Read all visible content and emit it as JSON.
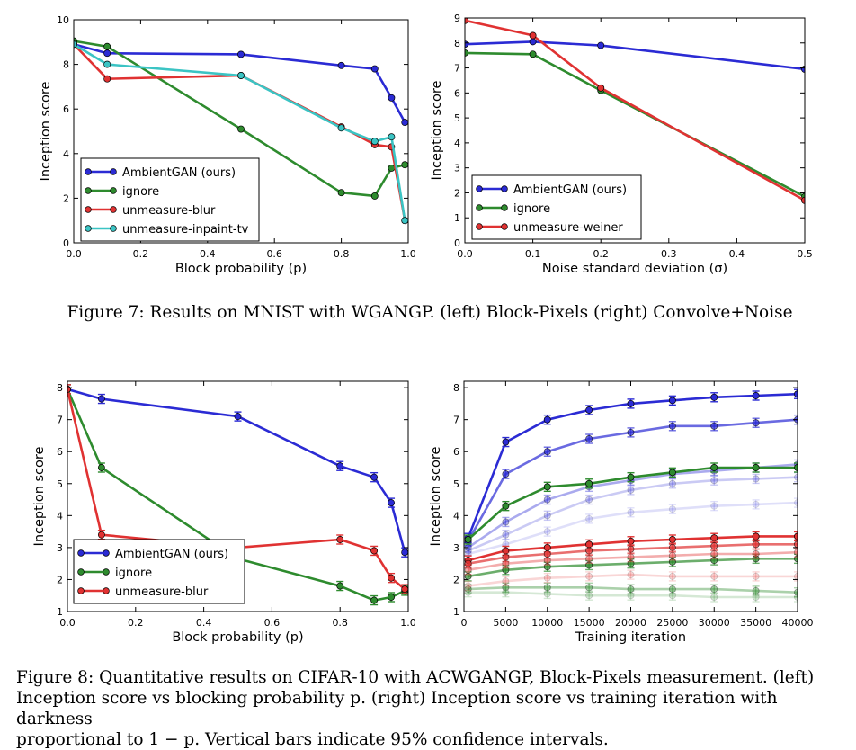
{
  "figure7": {
    "caption": "Figure 7: Results on MNIST with WGANGP. (left) Block-Pixels (right) Convolve+Noise"
  },
  "figure8": {
    "caption_lines": [
      "Figure 8: Quantitative results on CIFAR-10 with ACWGANGP, Block-Pixels measurement. (left)",
      "Inception score vs blocking probability p. (right) Inception score vs training iteration with darkness",
      "proportional to 1 − p. Vertical bars indicate 95% confidence intervals."
    ]
  },
  "colors": {
    "blue": "#2b2bd4",
    "green": "#2e8b2e",
    "red": "#e03232",
    "cyan": "#3bc4c4"
  },
  "chart_data": [
    {
      "id": "mnist_block",
      "type": "line",
      "xlabel": "Block probability (p)",
      "ylabel": "Inception score",
      "xlim": [
        0,
        1
      ],
      "ylim": [
        0,
        10
      ],
      "xticks": [
        "0.0",
        "0.2",
        "0.4",
        "0.6",
        "0.8",
        "1.0"
      ],
      "yticks": [
        "0",
        "2",
        "4",
        "6",
        "8",
        "10"
      ],
      "legend": "bottom-left",
      "series": [
        {
          "name": "AmbientGAN (ours)",
          "color": "blue",
          "x": [
            0,
            0.1,
            0.5,
            0.8,
            0.9,
            0.95,
            0.99
          ],
          "y": [
            8.9,
            8.5,
            8.45,
            7.95,
            7.8,
            6.5,
            5.4
          ]
        },
        {
          "name": "ignore",
          "color": "green",
          "x": [
            0,
            0.1,
            0.5,
            0.8,
            0.9,
            0.95,
            0.99
          ],
          "y": [
            9.05,
            8.8,
            5.1,
            2.25,
            2.1,
            3.35,
            3.5
          ]
        },
        {
          "name": "unmeasure-blur",
          "color": "red",
          "x": [
            0,
            0.1,
            0.5,
            0.8,
            0.9,
            0.95,
            0.99
          ],
          "y": [
            8.9,
            7.35,
            7.5,
            5.2,
            4.4,
            4.3,
            1.0
          ]
        },
        {
          "name": "unmeasure-inpaint-tv",
          "color": "cyan",
          "x": [
            0,
            0.1,
            0.5,
            0.8,
            0.9,
            0.95,
            0.99
          ],
          "y": [
            8.9,
            8.0,
            7.5,
            5.15,
            4.55,
            4.75,
            1.0
          ]
        }
      ]
    },
    {
      "id": "mnist_noise",
      "type": "line",
      "xlabel": "Noise standard deviation (σ)",
      "ylabel": "Inception score",
      "xlim": [
        0,
        0.5
      ],
      "ylim": [
        0,
        9
      ],
      "xticks": [
        "0.0",
        "0.1",
        "0.2",
        "0.3",
        "0.4",
        "0.5"
      ],
      "yticks": [
        "0",
        "1",
        "2",
        "3",
        "4",
        "5",
        "6",
        "7",
        "8",
        "9"
      ],
      "legend": "bottom-left",
      "series": [
        {
          "name": "AmbientGAN (ours)",
          "color": "blue",
          "x": [
            0,
            0.1,
            0.2,
            0.5
          ],
          "y": [
            7.95,
            8.05,
            7.9,
            6.95
          ]
        },
        {
          "name": "ignore",
          "color": "green",
          "x": [
            0,
            0.1,
            0.2,
            0.5
          ],
          "y": [
            7.6,
            7.55,
            6.1,
            1.85
          ]
        },
        {
          "name": "unmeasure-weiner",
          "color": "red",
          "x": [
            0,
            0.1,
            0.2,
            0.5
          ],
          "y": [
            8.9,
            8.3,
            6.2,
            1.7
          ]
        }
      ]
    },
    {
      "id": "cifar_block",
      "type": "line",
      "xlabel": "Block probability (p)",
      "ylabel": "Inception score",
      "xlim": [
        0,
        1
      ],
      "ylim": [
        1,
        8.2
      ],
      "xticks": [
        "0.0",
        "0.2",
        "0.4",
        "0.6",
        "0.8",
        "1.0"
      ],
      "yticks": [
        "1",
        "2",
        "3",
        "4",
        "5",
        "6",
        "7",
        "8"
      ],
      "legend": "bottom-left",
      "series": [
        {
          "name": "AmbientGAN (ours)",
          "color": "blue",
          "x": [
            0,
            0.1,
            0.5,
            0.8,
            0.9,
            0.95,
            0.99
          ],
          "y": [
            7.95,
            7.65,
            7.1,
            5.55,
            5.2,
            4.4,
            2.85
          ]
        },
        {
          "name": "ignore",
          "color": "green",
          "x": [
            0,
            0.1,
            0.5,
            0.8,
            0.9,
            0.95,
            0.99
          ],
          "y": [
            7.95,
            5.5,
            2.65,
            1.8,
            1.35,
            1.45,
            1.65
          ]
        },
        {
          "name": "unmeasure-blur",
          "color": "red",
          "x": [
            0,
            0.1,
            0.5,
            0.8,
            0.9,
            0.95,
            0.99
          ],
          "y": [
            7.95,
            3.4,
            3.0,
            3.25,
            2.9,
            2.05,
            1.7
          ]
        }
      ]
    },
    {
      "id": "cifar_training",
      "type": "line",
      "xlabel": "Training iteration",
      "ylabel": "Inception score",
      "xlim": [
        0,
        40000
      ],
      "ylim": [
        1,
        8.2
      ],
      "xticks": [
        "0",
        "5000",
        "10000",
        "15000",
        "20000",
        "25000",
        "30000",
        "35000",
        "40000"
      ],
      "yticks": [
        "1",
        "2",
        "3",
        "4",
        "5",
        "6",
        "7",
        "8"
      ],
      "series": [
        {
          "color": "blue",
          "opacity": 1.0,
          "x": [
            500,
            5000,
            10000,
            15000,
            20000,
            25000,
            30000,
            35000,
            40000
          ],
          "y": [
            3.3,
            6.3,
            7.0,
            7.3,
            7.5,
            7.6,
            7.7,
            7.75,
            7.8
          ]
        },
        {
          "color": "blue",
          "opacity": 0.7,
          "x": [
            500,
            5000,
            10000,
            15000,
            20000,
            25000,
            30000,
            35000,
            40000
          ],
          "y": [
            3.2,
            5.3,
            6.0,
            6.4,
            6.6,
            6.8,
            6.8,
            6.9,
            7.0
          ]
        },
        {
          "color": "blue",
          "opacity": 0.4,
          "x": [
            500,
            5000,
            10000,
            15000,
            20000,
            25000,
            30000,
            35000,
            40000
          ],
          "y": [
            3.0,
            3.8,
            4.5,
            4.9,
            5.1,
            5.3,
            5.4,
            5.5,
            5.6
          ]
        },
        {
          "color": "blue",
          "opacity": 0.25,
          "x": [
            500,
            5000,
            10000,
            15000,
            20000,
            25000,
            30000,
            35000,
            40000
          ],
          "y": [
            2.9,
            3.4,
            4.0,
            4.5,
            4.8,
            5.0,
            5.1,
            5.15,
            5.2
          ]
        },
        {
          "color": "blue",
          "opacity": 0.15,
          "x": [
            500,
            5000,
            10000,
            15000,
            20000,
            25000,
            30000,
            35000,
            40000
          ],
          "y": [
            2.8,
            3.1,
            3.5,
            3.9,
            4.1,
            4.2,
            4.3,
            4.35,
            4.4
          ]
        },
        {
          "color": "green",
          "opacity": 1.0,
          "x": [
            500,
            5000,
            10000,
            15000,
            20000,
            25000,
            30000,
            35000,
            40000
          ],
          "y": [
            3.25,
            4.3,
            4.9,
            5.0,
            5.2,
            5.35,
            5.5,
            5.5,
            5.5
          ]
        },
        {
          "color": "green",
          "opacity": 0.7,
          "x": [
            500,
            5000,
            10000,
            15000,
            20000,
            25000,
            30000,
            35000,
            40000
          ],
          "y": [
            2.1,
            2.3,
            2.4,
            2.45,
            2.5,
            2.55,
            2.6,
            2.65,
            2.65
          ]
        },
        {
          "color": "green",
          "opacity": 0.4,
          "x": [
            500,
            5000,
            10000,
            15000,
            20000,
            25000,
            30000,
            35000,
            40000
          ],
          "y": [
            1.7,
            1.75,
            1.75,
            1.75,
            1.7,
            1.7,
            1.7,
            1.65,
            1.6
          ]
        },
        {
          "color": "green",
          "opacity": 0.2,
          "x": [
            500,
            5000,
            10000,
            15000,
            20000,
            25000,
            30000,
            35000,
            40000
          ],
          "y": [
            1.6,
            1.6,
            1.55,
            1.5,
            1.5,
            1.5,
            1.45,
            1.45,
            1.45
          ]
        },
        {
          "color": "red",
          "opacity": 1.0,
          "x": [
            500,
            5000,
            10000,
            15000,
            20000,
            25000,
            30000,
            35000,
            40000
          ],
          "y": [
            2.6,
            2.9,
            3.0,
            3.1,
            3.2,
            3.25,
            3.3,
            3.35,
            3.35
          ]
        },
        {
          "color": "red",
          "opacity": 0.7,
          "x": [
            500,
            5000,
            10000,
            15000,
            20000,
            25000,
            30000,
            35000,
            40000
          ],
          "y": [
            2.5,
            2.7,
            2.8,
            2.9,
            2.95,
            3.0,
            3.05,
            3.1,
            3.1
          ]
        },
        {
          "color": "red",
          "opacity": 0.4,
          "x": [
            500,
            5000,
            10000,
            15000,
            20000,
            25000,
            30000,
            35000,
            40000
          ],
          "y": [
            2.3,
            2.5,
            2.6,
            2.65,
            2.7,
            2.75,
            2.8,
            2.8,
            2.85
          ]
        },
        {
          "color": "red",
          "opacity": 0.2,
          "x": [
            500,
            5000,
            10000,
            15000,
            20000,
            25000,
            30000,
            35000,
            40000
          ],
          "y": [
            1.8,
            1.95,
            2.05,
            2.1,
            2.15,
            2.1,
            2.1,
            2.1,
            2.1
          ]
        }
      ]
    }
  ]
}
